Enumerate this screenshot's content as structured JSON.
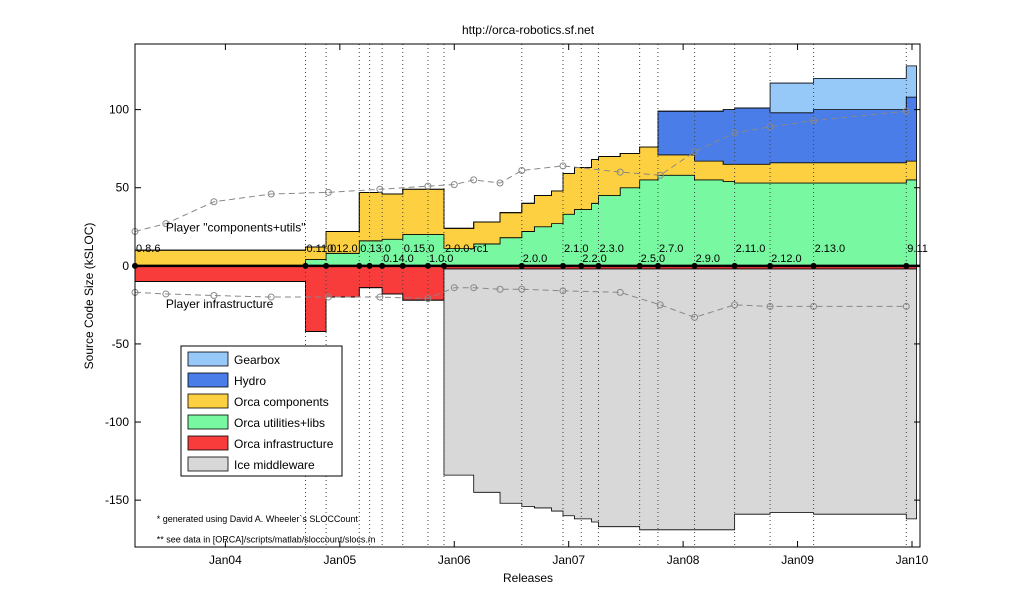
{
  "chart_data": {
    "type": "area",
    "title": "http://orca-robotics.sf.net",
    "xlabel": "Releases",
    "ylabel": "Source Code Size (kSLOC)",
    "xlim": [
      2003.21,
      2010.07
    ],
    "ylim": [
      -180,
      142
    ],
    "x_ticks": [
      {
        "value": 2004.0,
        "label": "Jan04"
      },
      {
        "value": 2005.0,
        "label": "Jan05"
      },
      {
        "value": 2006.0,
        "label": "Jan06"
      },
      {
        "value": 2007.0,
        "label": "Jan07"
      },
      {
        "value": 2008.0,
        "label": "Jan08"
      },
      {
        "value": 2009.0,
        "label": "Jan09"
      },
      {
        "value": 2010.0,
        "label": "Jan10"
      }
    ],
    "y_ticks": [
      -150,
      -100,
      -50,
      0,
      50,
      100
    ],
    "grid": "vertical dotted lines at release dates",
    "legend_position": "lower-left",
    "releases": [
      {
        "x": 2003.21,
        "label": "0.8.6",
        "row": 0
      },
      {
        "x": 2004.7,
        "label": "0.11.0",
        "row": 0
      },
      {
        "x": 2004.88,
        "label": "0.12.0",
        "row": 0
      },
      {
        "x": 2005.17,
        "label": "0.13.0",
        "row": 0
      },
      {
        "x": 2005.26,
        "label": "",
        "row": 0
      },
      {
        "x": 2005.37,
        "label": "0.14.0",
        "row": 1
      },
      {
        "x": 2005.55,
        "label": "0.15.0",
        "row": 0
      },
      {
        "x": 2005.77,
        "label": "1.0.0",
        "row": 1
      },
      {
        "x": 2005.91,
        "label": "2.0.0-rc1",
        "row": 0
      },
      {
        "x": 2006.59,
        "label": "2.0.0",
        "row": 1
      },
      {
        "x": 2006.95,
        "label": "2.1.0",
        "row": 0
      },
      {
        "x": 2007.11,
        "label": "2.2.0",
        "row": 1
      },
      {
        "x": 2007.26,
        "label": "2.3.0",
        "row": 0
      },
      {
        "x": 2007.62,
        "label": "2.5.0",
        "row": 1
      },
      {
        "x": 2007.78,
        "label": "2.7.0",
        "row": 0
      },
      {
        "x": 2008.1,
        "label": "2.9.0",
        "row": 1
      },
      {
        "x": 2008.45,
        "label": "2.11.0",
        "row": 0
      },
      {
        "x": 2008.76,
        "label": "2.12.0",
        "row": 1
      },
      {
        "x": 2009.14,
        "label": "2.13.0",
        "row": 0
      },
      {
        "x": 2009.95,
        "label": "9.11",
        "row": 0
      }
    ],
    "series": [
      {
        "name": "Gearbox",
        "color": "#96c8f8",
        "sign": "pos",
        "x": [
          2003.21,
          2004.7,
          2004.88,
          2005.17,
          2005.37,
          2005.55,
          2005.91,
          2006.17,
          2006.4,
          2006.59,
          2006.7,
          2006.85,
          2006.95,
          2007.05,
          2007.2,
          2007.26,
          2007.45,
          2007.62,
          2007.78,
          2008.1,
          2008.35,
          2008.45,
          2008.76,
          2009.14,
          2009.95
        ],
        "values": [
          0,
          0,
          0,
          0,
          0,
          0,
          0,
          0,
          0,
          0,
          0,
          0,
          0,
          0,
          0,
          0,
          0,
          0,
          0,
          0,
          0,
          0,
          19,
          20,
          20
        ]
      },
      {
        "name": "Hydro",
        "color": "#4a7de8",
        "sign": "pos",
        "x": [
          2003.21,
          2004.7,
          2004.88,
          2005.17,
          2005.37,
          2005.55,
          2005.91,
          2006.17,
          2006.4,
          2006.59,
          2006.7,
          2006.85,
          2006.95,
          2007.05,
          2007.2,
          2007.26,
          2007.45,
          2007.62,
          2007.78,
          2008.1,
          2008.35,
          2008.45,
          2008.76,
          2009.14,
          2009.95
        ],
        "values": [
          0,
          0,
          0,
          0,
          0,
          0,
          0,
          0,
          0,
          0,
          0,
          0,
          0,
          0,
          0,
          0,
          0,
          0,
          28,
          32,
          35,
          36,
          32,
          34,
          41
        ]
      },
      {
        "name": "Orca components",
        "color": "#fcd040",
        "sign": "pos",
        "x": [
          2003.21,
          2004.7,
          2004.88,
          2005.17,
          2005.37,
          2005.55,
          2005.91,
          2006.17,
          2006.4,
          2006.59,
          2006.7,
          2006.85,
          2006.95,
          2007.05,
          2007.2,
          2007.26,
          2007.45,
          2007.62,
          2007.78,
          2008.1,
          2008.35,
          2008.45,
          2008.76,
          2009.14,
          2009.95
        ],
        "values": [
          10,
          8,
          14,
          31,
          29,
          29,
          13,
          14,
          16,
          18,
          20,
          21,
          26,
          27,
          28,
          25,
          22,
          21,
          13,
          12,
          11,
          12,
          13,
          13,
          12
        ]
      },
      {
        "name": "Orca utilities+libs",
        "color": "#78f8a0",
        "sign": "pos",
        "x": [
          2003.21,
          2004.7,
          2004.88,
          2005.17,
          2005.37,
          2005.55,
          2005.91,
          2006.17,
          2006.4,
          2006.59,
          2006.7,
          2006.85,
          2006.95,
          2007.05,
          2007.2,
          2007.26,
          2007.45,
          2007.62,
          2007.78,
          2008.1,
          2008.35,
          2008.45,
          2008.76,
          2009.14,
          2009.95
        ],
        "values": [
          0,
          4,
          8,
          16,
          17,
          20,
          11,
          14,
          18,
          22,
          25,
          27,
          33,
          36,
          40,
          45,
          50,
          55,
          58,
          55,
          54,
          53,
          53,
          53,
          55
        ]
      },
      {
        "name": "Orca infrastructure",
        "color": "#f83c3c",
        "sign": "neg",
        "x": [
          2003.21,
          2004.7,
          2004.88,
          2005.17,
          2005.37,
          2005.55,
          2005.91,
          2006.17,
          2006.4,
          2006.59,
          2006.7,
          2006.85,
          2006.95,
          2007.05,
          2007.2,
          2007.26,
          2007.45,
          2007.62,
          2007.78,
          2008.1,
          2008.35,
          2008.45,
          2008.76,
          2009.14,
          2009.95
        ],
        "values": [
          -10,
          -42,
          -20,
          -14,
          -18,
          -22,
          -2,
          -2,
          -2,
          -2,
          -2,
          -2,
          -2,
          -2,
          -2,
          -2,
          -2,
          -2,
          -2,
          -2,
          -2,
          -2,
          -2,
          -2,
          -2
        ]
      },
      {
        "name": "Ice middleware",
        "color": "#d8d8d8",
        "sign": "neg",
        "x": [
          2003.21,
          2004.7,
          2004.88,
          2005.17,
          2005.37,
          2005.55,
          2005.91,
          2006.17,
          2006.4,
          2006.59,
          2006.7,
          2006.85,
          2006.95,
          2007.05,
          2007.2,
          2007.26,
          2007.45,
          2007.62,
          2007.78,
          2008.1,
          2008.35,
          2008.45,
          2008.76,
          2009.14,
          2009.95
        ],
        "values": [
          0,
          0,
          0,
          0,
          0,
          0,
          -132,
          -143,
          -150,
          -152,
          -153,
          -155,
          -158,
          -160,
          -162,
          -165,
          -165,
          -167,
          -167,
          -167,
          -167,
          -157,
          -156,
          -157,
          -160
        ]
      },
      {
        "name": "Player \"components+utils\"",
        "color": "#888888",
        "style": "dashed-circles",
        "x": [
          2003.21,
          2003.48,
          2003.9,
          2004.4,
          2004.9,
          2005.35,
          2005.77,
          2006.0,
          2006.17,
          2006.4,
          2006.59,
          2006.95,
          2007.45,
          2007.8,
          2008.1,
          2008.45,
          2008.76,
          2009.14,
          2009.95
        ],
        "values": [
          22,
          27,
          41,
          46,
          47,
          49,
          51,
          52,
          55,
          53,
          61,
          64,
          60,
          58,
          73,
          85,
          89,
          93,
          99
        ]
      },
      {
        "name": "Player infrastructure",
        "color": "#888888",
        "style": "dashed-circles",
        "x": [
          2003.21,
          2003.48,
          2003.9,
          2004.4,
          2004.9,
          2005.35,
          2005.77,
          2006.0,
          2006.17,
          2006.4,
          2006.59,
          2006.95,
          2007.45,
          2007.8,
          2008.1,
          2008.45,
          2008.76,
          2009.14,
          2009.95
        ],
        "values": [
          -17,
          -18,
          -19,
          -20,
          -20,
          -20,
          -21,
          -14,
          -14,
          -15,
          -15,
          -16,
          -17,
          -25,
          -33,
          -25,
          -26,
          -26,
          -26
        ]
      }
    ],
    "annotations": [
      {
        "text": "Player \"components+utils\"",
        "x": 2003.48,
        "y": 22
      },
      {
        "text": "Player infrastructure",
        "x": 2003.48,
        "y": -27
      },
      {
        "text": "*   generated using David A. Wheeler`s SLOCCount",
        "x": 2003.4,
        "y": -164
      },
      {
        "text": "** see data in [ORCA]/scripts/matlab/sloccount/slocs.m",
        "x": 2003.4,
        "y": -177
      }
    ]
  }
}
